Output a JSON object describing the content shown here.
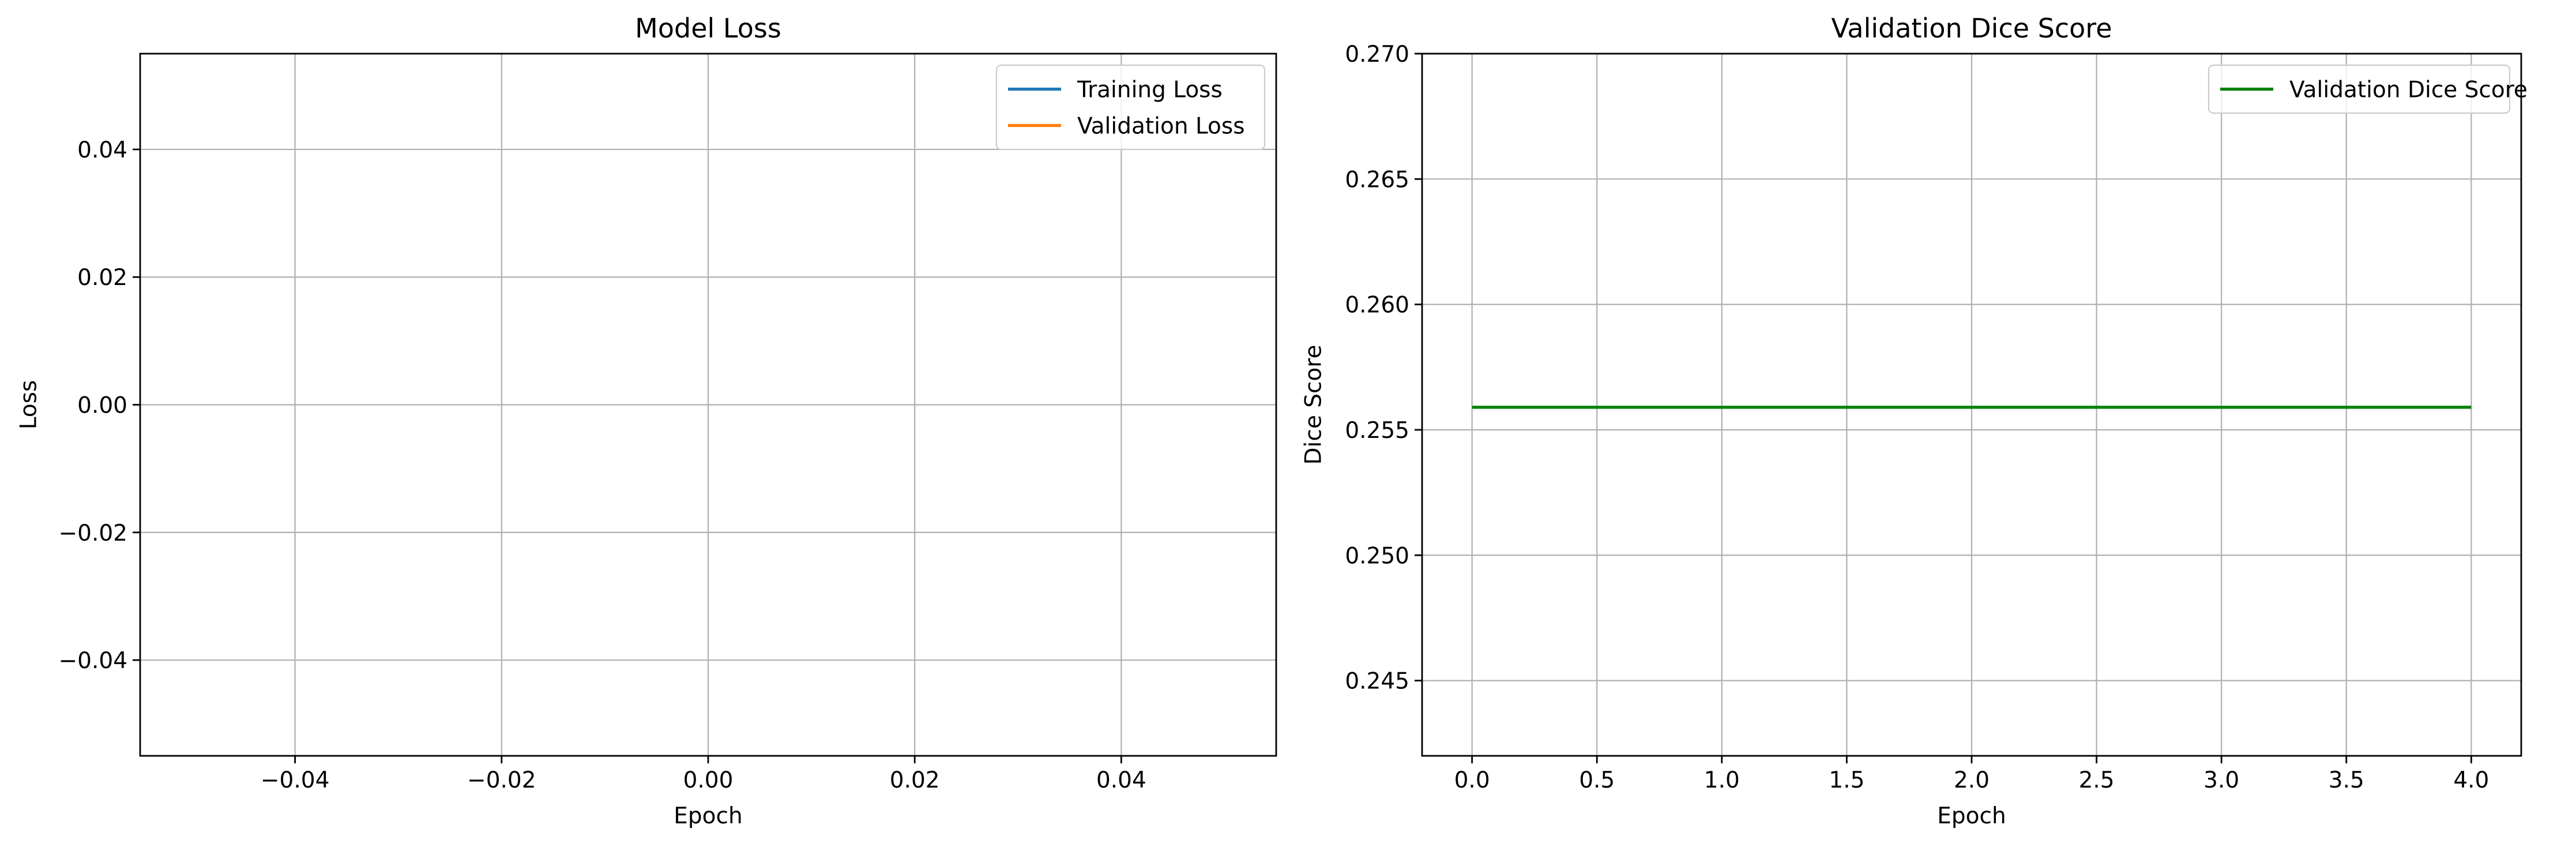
{
  "chart_data": [
    {
      "type": "line",
      "title": "Model Loss",
      "xlabel": "Epoch",
      "ylabel": "Loss",
      "xlim": [
        -0.055,
        0.055
      ],
      "ylim": [
        -0.055,
        0.055
      ],
      "xticks": [
        -0.04,
        -0.02,
        0.0,
        0.02,
        0.04
      ],
      "xtick_labels": [
        "−0.04",
        "−0.02",
        "0.00",
        "0.02",
        "0.04"
      ],
      "yticks": [
        -0.04,
        -0.02,
        0.0,
        0.02,
        0.04
      ],
      "ytick_labels": [
        "−0.04",
        "−0.02",
        "0.00",
        "0.02",
        "0.04"
      ],
      "grid": true,
      "legend_position": "top-right",
      "series": [
        {
          "name": "Training Loss",
          "color": "#1f77b4",
          "x": [],
          "y": []
        },
        {
          "name": "Validation Loss",
          "color": "#ff7f0e",
          "x": [],
          "y": []
        }
      ]
    },
    {
      "type": "line",
      "title": "Validation Dice Score",
      "xlabel": "Epoch",
      "ylabel": "Dice Score",
      "xlim": [
        -0.2,
        4.2
      ],
      "ylim": [
        0.242,
        0.27
      ],
      "xticks": [
        0.0,
        0.5,
        1.0,
        1.5,
        2.0,
        2.5,
        3.0,
        3.5,
        4.0
      ],
      "xtick_labels": [
        "0.0",
        "0.5",
        "1.0",
        "1.5",
        "2.0",
        "2.5",
        "3.0",
        "3.5",
        "4.0"
      ],
      "yticks": [
        0.245,
        0.25,
        0.255,
        0.26,
        0.265,
        0.27
      ],
      "ytick_labels": [
        "0.245",
        "0.250",
        "0.255",
        "0.260",
        "0.265",
        "0.270"
      ],
      "grid": true,
      "legend_position": "top-right",
      "series": [
        {
          "name": "Validation Dice Score",
          "color": "#008000",
          "x": [
            0,
            1,
            2,
            3,
            4
          ],
          "y": [
            0.2559,
            0.2559,
            0.2559,
            0.2559,
            0.2559
          ]
        }
      ]
    }
  ]
}
